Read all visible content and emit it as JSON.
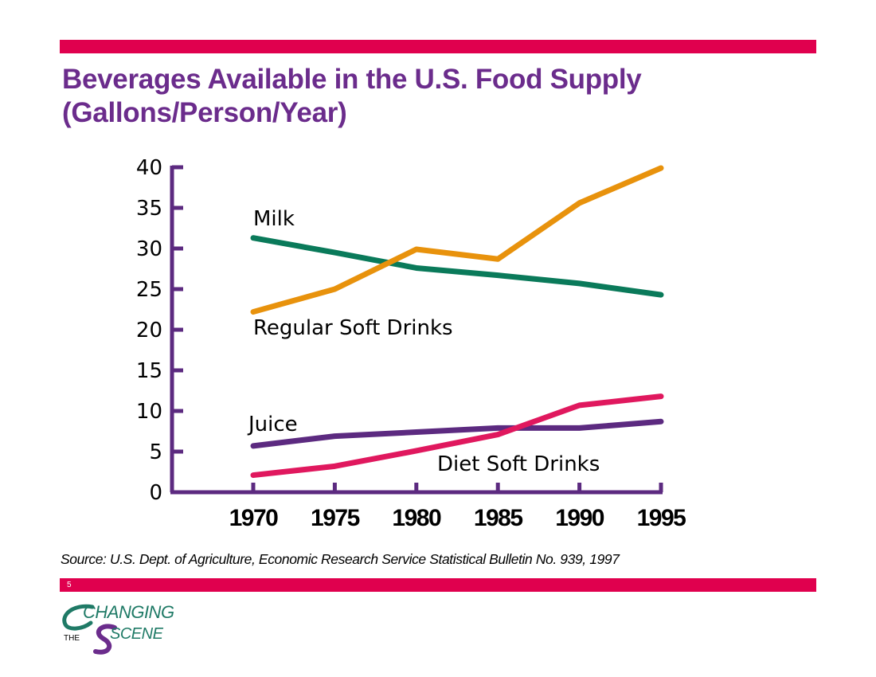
{
  "slide": {
    "title_line_1": "Beverages Available in the U.S. Food Supply",
    "title_line_2": "(Gallons/Person/Year)",
    "source": "Source: U.S. Dept. of Agriculture, Economic Research Service Statistical Bulletin No. 939, 1997",
    "page_number": "5"
  },
  "logo": {
    "word_1": "CHANGING",
    "word_2": "THE",
    "word_3": "SCENE"
  },
  "colors": {
    "accent_bar": "#e0004e",
    "title": "#6b2c8c",
    "axis": "#5c2a80",
    "logo_teal": "#1f7a66",
    "logo_purple": "#6b2c8c"
  },
  "chart_data": {
    "type": "line",
    "title": "",
    "xlabel": "",
    "ylabel": "",
    "x": [
      1970,
      1975,
      1980,
      1985,
      1990,
      1995
    ],
    "xtick_labels": [
      "1970",
      "1975",
      "1980",
      "1985",
      "1990",
      "1995"
    ],
    "ylim": [
      0,
      40
    ],
    "yticks": [
      0,
      5,
      10,
      15,
      20,
      25,
      30,
      35,
      40
    ],
    "ytick_labels": [
      "0",
      "5",
      "10",
      "15",
      "20",
      "25",
      "30",
      "35",
      "40"
    ],
    "grid": false,
    "legend": "none",
    "series": [
      {
        "name": "Milk",
        "color": "#0a7a5a",
        "values": [
          31.3,
          29.5,
          27.6,
          26.7,
          25.7,
          24.3
        ]
      },
      {
        "name": "Regular Soft Drinks",
        "color": "#e8920c",
        "values": [
          22.2,
          25.0,
          29.9,
          28.7,
          35.6,
          39.9
        ]
      },
      {
        "name": "Juice",
        "color": "#5c2a80",
        "values": [
          5.7,
          6.9,
          7.4,
          7.9,
          7.9,
          8.7
        ]
      },
      {
        "name": "Diet Soft Drinks",
        "color": "#e0185e",
        "values": [
          2.1,
          3.2,
          5.1,
          7.1,
          10.7,
          11.8
        ]
      }
    ]
  }
}
